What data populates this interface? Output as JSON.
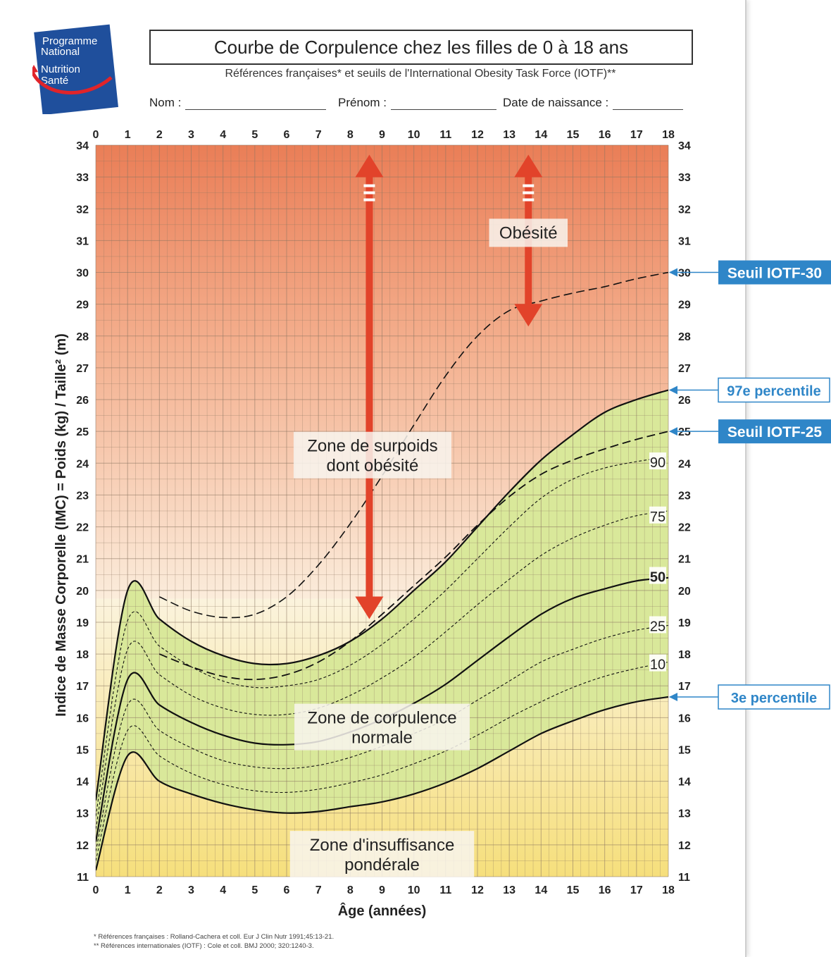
{
  "logo": {
    "line1": "Programme",
    "line2": "National",
    "line3": "Nutrition",
    "line4": "Santé"
  },
  "header": {
    "title": "Courbe de Corpulence chez les filles de 0 à 18 ans",
    "subtitle": "Références françaises* et seuils de l'International Obesity Task Force (IOTF)**",
    "name_label": "Nom :",
    "firstname_label": "Prénom :",
    "birthdate_label": "Date de naissance :"
  },
  "footnotes": {
    "line1": "* Références françaises : Rolland-Cachera et coll. Eur J Clin Nutr 1991;45:13-21.",
    "line2": "** Références internationales (IOTF) : Cole et coll. BMJ 2000; 320:1240-3."
  },
  "colors": {
    "overweight_top": "#ea7e57",
    "overweight_bottom": "#fbecdb",
    "normal_band": "#d9e89a",
    "underweight_bottom": "#f6df7c",
    "callout": "#2f86c8",
    "arrow": "#e2432a"
  },
  "chart_data": {
    "type": "line",
    "xlabel": "Âge (années)",
    "ylabel": "Indice de Masse Corporelle (IMC) = Poids (kg) / Taille² (m)",
    "xlim": [
      0,
      18
    ],
    "ylim": [
      11,
      34
    ],
    "x_ticks": [
      0,
      1,
      2,
      3,
      4,
      5,
      6,
      7,
      8,
      9,
      10,
      11,
      12,
      13,
      14,
      15,
      16,
      17,
      18
    ],
    "y_ticks": [
      11,
      12,
      13,
      14,
      15,
      16,
      17,
      18,
      19,
      20,
      21,
      22,
      23,
      24,
      25,
      26,
      27,
      28,
      29,
      30,
      31,
      32,
      33,
      34
    ],
    "grid": true,
    "x": [
      0,
      1,
      2,
      3,
      4,
      5,
      6,
      7,
      8,
      9,
      10,
      11,
      12,
      13,
      14,
      15,
      16,
      17,
      18
    ],
    "series": [
      {
        "name": "97",
        "style": "solid",
        "width": 2.2,
        "y": [
          13.4,
          20.0,
          19.1,
          18.4,
          17.95,
          17.7,
          17.7,
          17.95,
          18.4,
          19.1,
          20.0,
          20.9,
          22.0,
          23.1,
          24.1,
          24.9,
          25.6,
          26.0,
          26.3
        ]
      },
      {
        "name": "90",
        "style": "dotted",
        "width": 1.1,
        "y": [
          12.9,
          19.05,
          18.25,
          17.6,
          17.15,
          16.95,
          17.0,
          17.2,
          17.65,
          18.3,
          19.1,
          20.0,
          21.0,
          22.0,
          22.9,
          23.5,
          23.85,
          24.05,
          24.2
        ]
      },
      {
        "name": "75",
        "style": "dotted",
        "width": 1.1,
        "y": [
          12.5,
          18.15,
          17.35,
          16.7,
          16.3,
          16.1,
          16.1,
          16.3,
          16.7,
          17.25,
          17.9,
          18.7,
          19.55,
          20.35,
          21.1,
          21.65,
          22.05,
          22.35,
          22.5
        ]
      },
      {
        "name": "50",
        "style": "solid",
        "width": 2.2,
        "y": [
          12.1,
          17.2,
          16.4,
          15.85,
          15.45,
          15.2,
          15.15,
          15.25,
          15.55,
          15.95,
          16.45,
          17.05,
          17.8,
          18.55,
          19.25,
          19.75,
          20.05,
          20.3,
          20.4
        ]
      },
      {
        "name": "25",
        "style": "dotted",
        "width": 1.1,
        "y": [
          11.8,
          16.4,
          15.6,
          15.05,
          14.65,
          14.45,
          14.4,
          14.5,
          14.75,
          15.1,
          15.5,
          15.95,
          16.55,
          17.15,
          17.75,
          18.15,
          18.5,
          18.75,
          18.9
        ]
      },
      {
        "name": "10",
        "style": "dotted",
        "width": 1.1,
        "y": [
          11.5,
          15.6,
          14.8,
          14.25,
          13.9,
          13.7,
          13.65,
          13.75,
          13.95,
          14.2,
          14.55,
          14.95,
          15.45,
          16.0,
          16.5,
          16.95,
          17.3,
          17.55,
          17.75
        ]
      },
      {
        "name": "3",
        "style": "solid",
        "width": 2.2,
        "y": [
          11.2,
          14.8,
          14.0,
          13.6,
          13.3,
          13.1,
          13.0,
          13.05,
          13.2,
          13.35,
          13.6,
          13.95,
          14.4,
          14.95,
          15.5,
          15.9,
          16.25,
          16.5,
          16.65
        ]
      },
      {
        "name": "Seuil IOTF-30",
        "style": "dashed",
        "width": 1.6,
        "x": [
          2,
          3,
          4,
          5,
          6,
          7,
          8,
          9,
          10,
          11,
          12,
          13,
          14,
          15,
          16,
          17,
          18
        ],
        "y": [
          19.8,
          19.35,
          19.15,
          19.25,
          19.8,
          20.8,
          22.1,
          23.6,
          25.2,
          26.75,
          28.0,
          28.8,
          29.1,
          29.35,
          29.55,
          29.8,
          30.0
        ]
      },
      {
        "name": "Seuil IOTF-25",
        "style": "dashed",
        "width": 1.8,
        "x": [
          2,
          3,
          4,
          5,
          6,
          7,
          8,
          9,
          10,
          11,
          12,
          13,
          14,
          15,
          16,
          17,
          18
        ],
        "y": [
          18.0,
          17.6,
          17.3,
          17.2,
          17.35,
          17.75,
          18.4,
          19.25,
          20.15,
          21.05,
          22.05,
          22.95,
          23.65,
          24.1,
          24.45,
          24.75,
          25.0
        ]
      }
    ],
    "curve_labels": [
      {
        "text": "90",
        "y": 24.05
      },
      {
        "text": "75",
        "y": 22.35
      },
      {
        "text": "50",
        "y": 20.45
      },
      {
        "text": "25",
        "y": 18.9
      },
      {
        "text": "10",
        "y": 17.7
      }
    ],
    "callouts": [
      {
        "text": "Seuil IOTF-30",
        "y": 30.0,
        "boxed": true
      },
      {
        "text": "97e percentile",
        "y": 26.3,
        "boxed": false
      },
      {
        "text": "Seuil IOTF-25",
        "y": 25.0,
        "boxed": true
      },
      {
        "text": "3e percentile",
        "y": 16.65,
        "boxed": false
      }
    ],
    "zones": [
      {
        "text1": "Obésité",
        "text2": "",
        "x": 13.6,
        "y": 31.2
      },
      {
        "text1": "Zone de surpoids",
        "text2": "dont obésité",
        "x": 8.7,
        "y": 24.5
      },
      {
        "text1": "Zone de corpulence",
        "text2": "normale",
        "x": 9.0,
        "y": 15.95
      },
      {
        "text1": "Zone d'insuffisance",
        "text2": "pondérale",
        "x": 9.0,
        "y": 11.95
      }
    ],
    "arrows": [
      {
        "x": 8.6,
        "y_from": 19.1,
        "y_to": 33.7
      },
      {
        "x": 13.6,
        "y_from": 28.3,
        "y_to": 33.7
      }
    ]
  }
}
